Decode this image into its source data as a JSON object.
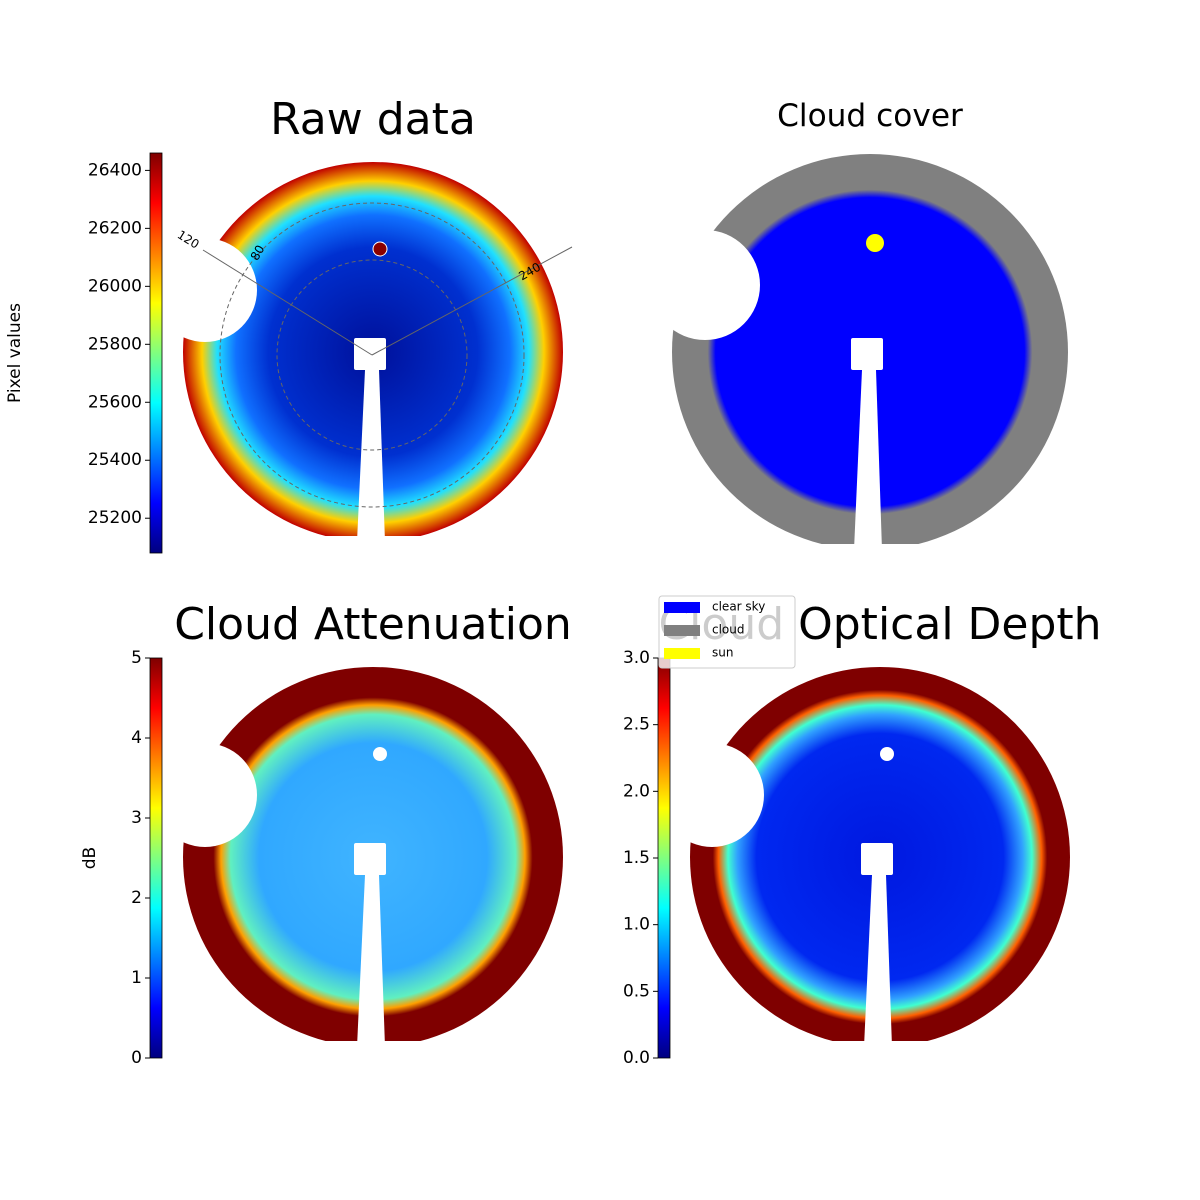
{
  "chart_data": [
    {
      "type": "image",
      "title": "Raw data",
      "colorbar_label": "Pixel values",
      "colormap": "jet",
      "clim": [
        25080,
        26460
      ],
      "cticks": [
        25200,
        25400,
        25600,
        25800,
        26000,
        26200,
        26400
      ],
      "polar_labels": [
        120,
        80,
        240
      ]
    },
    {
      "type": "mask",
      "title": "Cloud cover",
      "categories": [
        "clear sky",
        "cloud",
        "sun"
      ],
      "colors": [
        "#0000ff",
        "#808080",
        "#ffff00"
      ]
    },
    {
      "type": "image",
      "title": "Cloud Attenuation",
      "colorbar_label": "dB",
      "colormap": "jet",
      "clim": [
        0,
        5
      ],
      "cticks": [
        0,
        1,
        2,
        3,
        4,
        5
      ]
    },
    {
      "type": "image",
      "title": "Cloud Optical Depth",
      "colormap": "jet",
      "clim": [
        0,
        3
      ],
      "cticks": [
        {
          "value": 0,
          "label": "0.0"
        },
        {
          "value": 0.5,
          "label": "0.5"
        },
        {
          "value": 1,
          "label": "1.0"
        },
        {
          "value": 1.5,
          "label": "1.5"
        },
        {
          "value": 2,
          "label": "2.0"
        },
        {
          "value": 2.5,
          "label": "2.5"
        },
        {
          "value": 3,
          "label": "3.0"
        }
      ]
    }
  ]
}
